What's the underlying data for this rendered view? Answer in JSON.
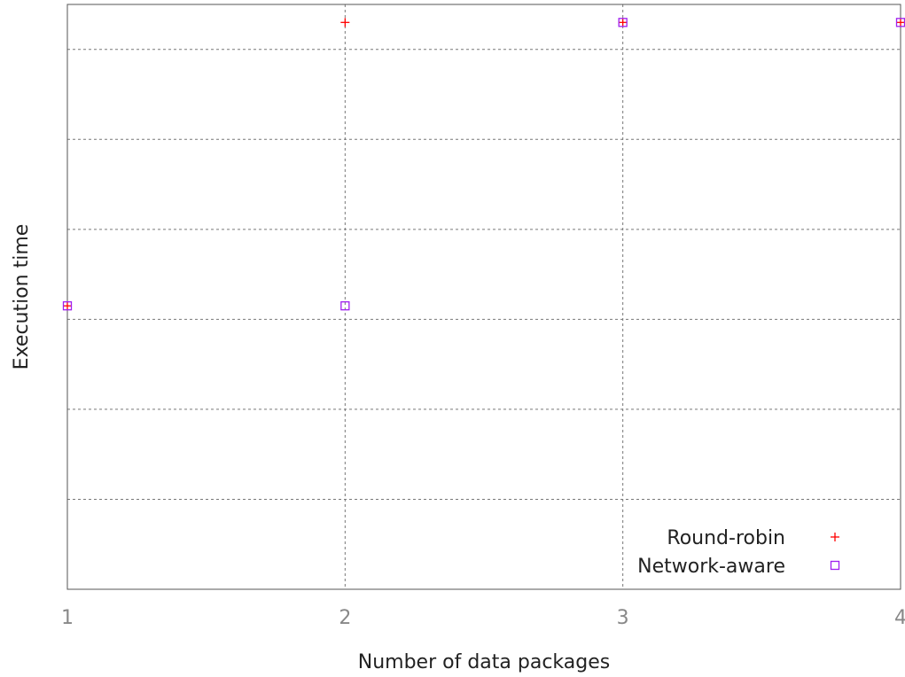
{
  "chart_data": {
    "type": "scatter",
    "xlabel": "Number of data packages",
    "ylabel": "Execution time",
    "xlim": [
      1,
      4
    ],
    "ylim": [
      0,
      6.5
    ],
    "x_ticks": [
      "1",
      "2",
      "3",
      "4"
    ],
    "y_ticks_labeled": false,
    "y_grid_levels": [
      1,
      2,
      3,
      4,
      5,
      6
    ],
    "grid": true,
    "legend_position": "bottom-right",
    "series": [
      {
        "name": "Round-robin",
        "marker": "plus",
        "color": "#ff0000",
        "points": [
          {
            "x": 1,
            "y": 3.15
          },
          {
            "x": 2,
            "y": 6.3
          },
          {
            "x": 3,
            "y": 6.3
          },
          {
            "x": 4,
            "y": 6.3
          }
        ]
      },
      {
        "name": "Network-aware",
        "marker": "square",
        "color": "#a020f0",
        "points": [
          {
            "x": 1,
            "y": 3.15
          },
          {
            "x": 2,
            "y": 3.15
          },
          {
            "x": 3,
            "y": 6.3
          },
          {
            "x": 4,
            "y": 6.3
          }
        ]
      }
    ]
  }
}
